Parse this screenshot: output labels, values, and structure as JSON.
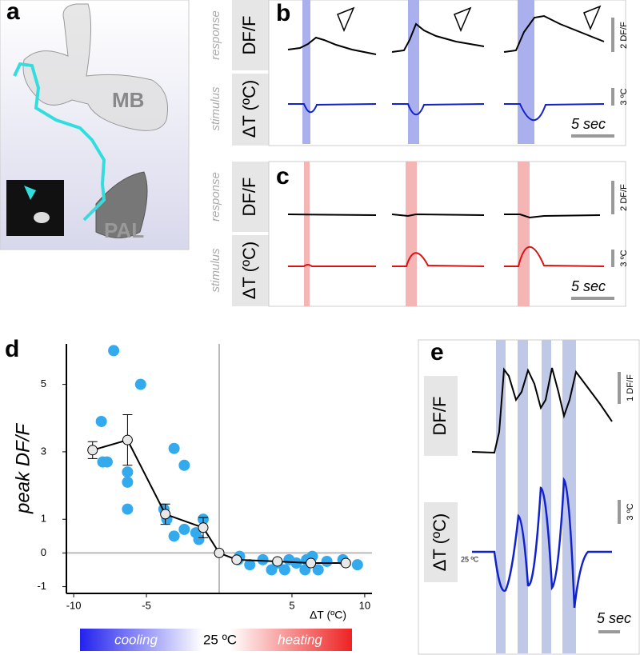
{
  "figure": {
    "panel_labels": [
      "a",
      "b",
      "c",
      "d",
      "e"
    ],
    "a": {
      "regions": [
        "MB",
        "PAL"
      ]
    },
    "b": {
      "response_label": "DF/F",
      "stimulus_label": "ΔT (ºC)",
      "response": "response",
      "stimulus": "stimulus",
      "scale_response": "2 DF/F",
      "scale_stimulus": "3 ºC",
      "scale_time": "5 sec"
    },
    "c": {
      "response_label": "DF/F",
      "stimulus_label": "ΔT (ºC)",
      "response": "response",
      "stimulus": "stimulus",
      "scale_response": "2 DF/F",
      "scale_stimulus": "3 ºC",
      "scale_time": "5 sec"
    },
    "d_gradient": {
      "left": "cooling",
      "middle": "25 ºC",
      "right": "heating"
    },
    "e": {
      "response_label": "DF/F",
      "stimulus_label": "ΔT (ºC)",
      "scale_response": "1 DF/F",
      "scale_stimulus": "3 ºC",
      "scale_time": "5 sec",
      "baseline": "25 ºC"
    }
  },
  "chart_data": {
    "type": "scatter",
    "x_label": "ΔT (ºC)",
    "y_label": "peak DF/F",
    "xlim": [
      -10.5,
      10.5
    ],
    "ylim": [
      -1.2,
      6.2
    ],
    "xticks": [
      -10,
      -5,
      5,
      10
    ],
    "yticks": [
      -1,
      0,
      1,
      3,
      5
    ],
    "series": [
      {
        "color": "#33aaee",
        "x": [
          -7.25,
          -5.4,
          -8.1,
          -3.1,
          -2.4,
          -8.0,
          -7.7,
          -6.3,
          -6.3,
          -6.3,
          -3.8,
          -3.6,
          -3.1,
          -2.4,
          -1.6,
          -1.4,
          -1.1,
          1.3,
          2.1,
          3.0,
          4.0,
          4.8,
          5.3,
          6.0,
          6.8,
          7.4,
          8.5,
          9.5,
          1.4,
          6.4,
          3.6,
          4.5,
          5.9
        ],
        "values": [
          6.0,
          5.0,
          3.9,
          3.1,
          2.6,
          2.7,
          2.7,
          2.4,
          2.1,
          1.3,
          1.3,
          1.0,
          0.5,
          0.7,
          0.6,
          0.4,
          1.0,
          -0.2,
          -0.35,
          -0.2,
          -0.3,
          -0.2,
          -0.3,
          -0.2,
          -0.5,
          -0.25,
          -0.2,
          -0.35,
          -0.1,
          -0.1,
          -0.5,
          -0.5,
          -0.5
        ]
      },
      {
        "color": "#e8e8e8",
        "x": [
          -8.7,
          -6.3,
          -3.7,
          -1.1,
          0,
          1.2,
          4.0,
          6.3,
          8.7
        ],
        "values": [
          3.05,
          3.35,
          1.15,
          0.75,
          0,
          -0.2,
          -0.25,
          -0.3,
          -0.3
        ],
        "error": [
          0.25,
          0.75,
          0.3,
          0.3,
          0.05,
          0.05,
          0.05,
          0.05,
          0.05
        ]
      }
    ]
  }
}
